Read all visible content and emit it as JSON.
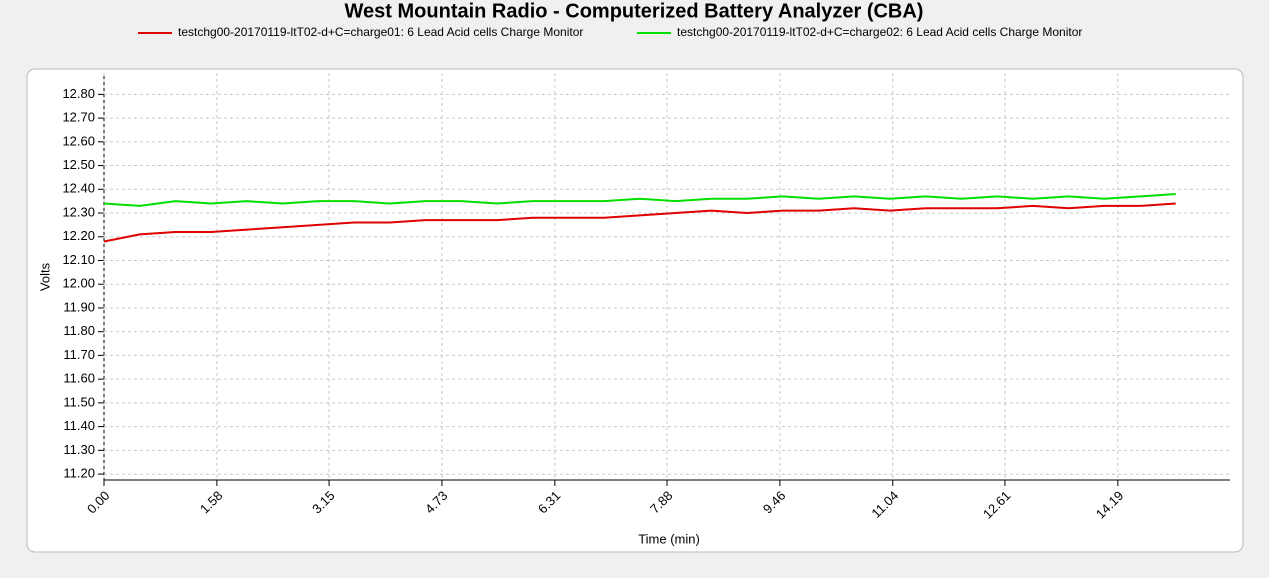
{
  "chart_data": {
    "type": "line",
    "title": "West Mountain Radio - Computerized Battery Analyzer (CBA)",
    "xlabel": "Time (min)",
    "ylabel": "Volts",
    "x": [
      0,
      0.5,
      1.0,
      1.5,
      2.0,
      2.5,
      3.0,
      3.5,
      4.0,
      4.5,
      5.0,
      5.5,
      6.0,
      6.5,
      7.0,
      7.5,
      8.0,
      8.5,
      9.0,
      9.5,
      10.0,
      10.5,
      11.0,
      11.5,
      12.0,
      12.5,
      13.0,
      13.5,
      14.0,
      14.5,
      15.0
    ],
    "series": [
      {
        "name": "testchg00-20170119-ltT02-d+C=charge01: 6 Lead Acid cells Charge Monitor",
        "color": "#e00000",
        "values": [
          12.18,
          12.21,
          12.22,
          12.22,
          12.23,
          12.24,
          12.25,
          12.26,
          12.26,
          12.27,
          12.27,
          12.27,
          12.28,
          12.28,
          12.28,
          12.29,
          12.3,
          12.31,
          12.3,
          12.31,
          12.31,
          12.32,
          12.31,
          12.32,
          12.32,
          12.32,
          12.33,
          12.32,
          12.33,
          12.33,
          12.34
        ]
      },
      {
        "name": "testchg00-20170119-ltT02-d+C=charge02: 6 Lead Acid cells Charge Monitor",
        "color": "#00e000",
        "values": [
          12.34,
          12.33,
          12.35,
          12.34,
          12.35,
          12.34,
          12.35,
          12.35,
          12.34,
          12.35,
          12.35,
          12.34,
          12.35,
          12.35,
          12.35,
          12.36,
          12.35,
          12.36,
          12.36,
          12.37,
          12.36,
          12.37,
          12.36,
          12.37,
          12.36,
          12.37,
          12.36,
          12.37,
          12.36,
          12.37,
          12.38
        ]
      }
    ],
    "xlim": [
      0,
      15.76
    ],
    "xticks": [
      {
        "value": 0,
        "label": "0.00"
      },
      1.58,
      3.15,
      4.73,
      6.31,
      7.88,
      9.46,
      11.04,
      12.61,
      14.19
    ],
    "ylim": [
      11.175,
      12.89
    ],
    "yticks": [
      {
        "value": 11.2,
        "label": "11.20"
      },
      {
        "value": 11.3,
        "label": "11.30"
      },
      {
        "value": 11.4,
        "label": "11.40"
      },
      {
        "value": 11.5,
        "label": "11.50"
      },
      {
        "value": 11.6,
        "label": "11.60"
      },
      {
        "value": 11.7,
        "label": "11.70"
      },
      {
        "value": 11.8,
        "label": "11.80"
      },
      {
        "value": 11.9,
        "label": "11.90"
      },
      {
        "value": 12.0,
        "label": "12.00"
      },
      {
        "value": 12.1,
        "label": "12.10"
      },
      {
        "value": 12.2,
        "label": "12.20"
      },
      {
        "value": 12.3,
        "label": "12.30"
      },
      {
        "value": 12.4,
        "label": "12.40"
      },
      {
        "value": 12.5,
        "label": "12.50"
      },
      {
        "value": 12.6,
        "label": "12.60"
      },
      {
        "value": 12.7,
        "label": "12.70"
      },
      {
        "value": 12.8,
        "label": "12.80"
      }
    ],
    "grid": true
  }
}
